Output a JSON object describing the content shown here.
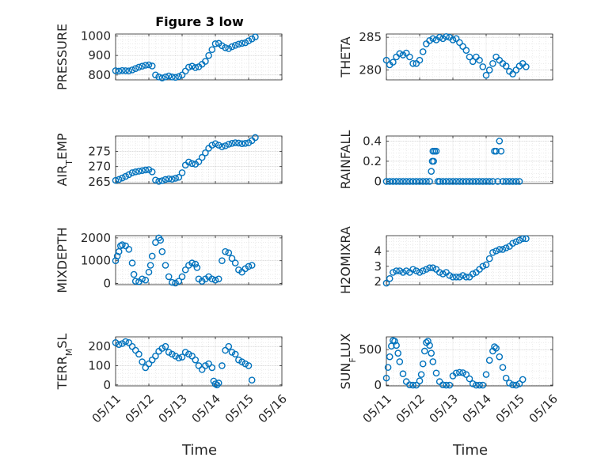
{
  "figure": {
    "title": "Figure 3 low",
    "xlabel": "Time",
    "x_ticks": [
      "05/11",
      "05/12",
      "05/13",
      "05/14",
      "05/15",
      "05/16"
    ],
    "marker_color": "#0072BD"
  },
  "chart_data": [
    {
      "type": "scatter",
      "id": "pressure",
      "ylabel": "PRESSURE",
      "ylim": [
        775,
        1010
      ],
      "yticks": [
        800,
        900,
        1000
      ],
      "x": [
        11.0,
        11.1,
        11.2,
        11.3,
        11.4,
        11.5,
        11.6,
        11.7,
        11.8,
        11.9,
        12.0,
        12.1,
        12.2,
        12.3,
        12.4,
        12.5,
        12.6,
        12.7,
        12.8,
        12.9,
        13.0,
        13.1,
        13.2,
        13.3,
        13.4,
        13.5,
        13.6,
        13.7,
        13.8,
        13.9,
        14.0,
        14.1,
        14.2,
        14.3,
        14.4,
        14.5,
        14.6,
        14.7,
        14.8,
        14.9,
        15.0,
        15.1,
        15.2
      ],
      "y": [
        822,
        820,
        823,
        822,
        821,
        826,
        833,
        840,
        845,
        850,
        852,
        846,
        800,
        790,
        785,
        790,
        795,
        790,
        788,
        792,
        800,
        820,
        840,
        845,
        838,
        842,
        855,
        870,
        900,
        930,
        960,
        962,
        950,
        940,
        935,
        945,
        952,
        958,
        962,
        965,
        975,
        985,
        995
      ]
    },
    {
      "type": "scatter",
      "id": "theta",
      "ylabel": "THETA",
      "ylim": [
        278.5,
        285.5
      ],
      "yticks": [
        280,
        285
      ],
      "x": [
        11.0,
        11.1,
        11.2,
        11.3,
        11.4,
        11.5,
        11.6,
        11.7,
        11.8,
        11.9,
        12.0,
        12.1,
        12.2,
        12.3,
        12.4,
        12.5,
        12.6,
        12.7,
        12.8,
        12.9,
        13.0,
        13.1,
        13.2,
        13.3,
        13.4,
        13.5,
        13.6,
        13.7,
        13.8,
        13.9,
        14.0,
        14.1,
        14.2,
        14.3,
        14.4,
        14.5,
        14.6,
        14.7,
        14.8,
        14.9,
        15.0,
        15.1,
        15.2
      ],
      "y": [
        281.5,
        280.8,
        281.2,
        282.0,
        282.5,
        282.3,
        282.6,
        282.0,
        281.0,
        281.0,
        281.5,
        282.8,
        284.0,
        284.5,
        284.8,
        284.6,
        285.0,
        284.8,
        285.1,
        285.0,
        284.6,
        284.8,
        284.2,
        283.6,
        283.0,
        282.0,
        281.3,
        282.0,
        281.5,
        280.5,
        279.2,
        280.0,
        281.0,
        282.0,
        281.5,
        281.0,
        280.6,
        279.8,
        279.4,
        280.0,
        280.6,
        281.0,
        280.5
      ]
    },
    {
      "type": "scatter",
      "id": "air-temp",
      "ylabel": "AIR_TEMP",
      "ylim": [
        264.5,
        280
      ],
      "yticks": [
        265,
        270,
        275
      ],
      "x": [
        11.0,
        11.1,
        11.2,
        11.3,
        11.4,
        11.5,
        11.6,
        11.7,
        11.8,
        11.9,
        12.0,
        12.1,
        12.2,
        12.3,
        12.4,
        12.5,
        12.6,
        12.7,
        12.8,
        12.9,
        13.0,
        13.1,
        13.2,
        13.3,
        13.4,
        13.5,
        13.6,
        13.7,
        13.8,
        13.9,
        14.0,
        14.1,
        14.2,
        14.3,
        14.4,
        14.5,
        14.6,
        14.7,
        14.8,
        14.9,
        15.0,
        15.1,
        15.2
      ],
      "y": [
        265.5,
        265.8,
        266.3,
        266.8,
        267.4,
        268.0,
        268.3,
        268.5,
        268.7,
        268.9,
        269.0,
        268.3,
        265.6,
        265.2,
        265.4,
        265.8,
        266.0,
        265.9,
        266.2,
        266.5,
        268.0,
        270.5,
        271.5,
        271.0,
        270.8,
        271.6,
        273.0,
        274.5,
        276.0,
        277.0,
        277.5,
        277.0,
        276.5,
        276.8,
        277.3,
        277.6,
        277.8,
        277.7,
        277.5,
        277.6,
        277.8,
        278.5,
        279.5
      ]
    },
    {
      "type": "scatter",
      "id": "rainfall",
      "ylabel": "RAINFALL",
      "ylim": [
        -0.02,
        0.45
      ],
      "yticks": [
        0,
        0.2,
        0.4
      ],
      "x": [
        11.0,
        11.1,
        11.2,
        11.3,
        11.4,
        11.5,
        11.6,
        11.7,
        11.8,
        11.9,
        12.0,
        12.1,
        12.2,
        12.3,
        12.35,
        12.38,
        12.4,
        12.42,
        12.45,
        12.5,
        12.55,
        12.6,
        12.7,
        12.8,
        12.9,
        13.0,
        13.1,
        13.2,
        13.3,
        13.4,
        13.5,
        13.6,
        13.7,
        13.8,
        13.9,
        14.0,
        14.1,
        14.2,
        14.25,
        14.3,
        14.35,
        14.4,
        14.45,
        14.5,
        14.6,
        14.7,
        14.8,
        14.9,
        15.0
      ],
      "y": [
        0,
        0,
        0,
        0,
        0,
        0,
        0,
        0,
        0,
        0,
        0,
        0,
        0,
        0,
        0.1,
        0.2,
        0.3,
        0.2,
        0.3,
        0.3,
        0,
        0,
        0,
        0,
        0,
        0,
        0,
        0,
        0,
        0,
        0,
        0,
        0,
        0,
        0,
        0,
        0,
        0,
        0.3,
        0.3,
        0,
        0.4,
        0.3,
        0,
        0,
        0,
        0,
        0,
        0
      ]
    },
    {
      "type": "scatter",
      "id": "mixdepth",
      "ylabel": "MIXDEPTH",
      "ylim": [
        -50,
        2100
      ],
      "yticks": [
        0,
        1000,
        2000
      ],
      "x": [
        11.0,
        11.05,
        11.1,
        11.15,
        11.2,
        11.3,
        11.4,
        11.5,
        11.55,
        11.6,
        11.7,
        11.8,
        11.9,
        12.0,
        12.05,
        12.1,
        12.2,
        12.3,
        12.35,
        12.4,
        12.5,
        12.6,
        12.7,
        12.8,
        12.9,
        13.0,
        13.1,
        13.2,
        13.3,
        13.4,
        13.45,
        13.5,
        13.6,
        13.7,
        13.8,
        13.9,
        14.0,
        14.1,
        14.2,
        14.3,
        14.4,
        14.5,
        14.6,
        14.7,
        14.8,
        14.9,
        15.0,
        15.1
      ],
      "y": [
        1000,
        1200,
        1400,
        1650,
        1700,
        1650,
        1500,
        900,
        400,
        100,
        80,
        200,
        150,
        500,
        800,
        1200,
        1800,
        2000,
        1900,
        1400,
        800,
        300,
        50,
        20,
        100,
        300,
        600,
        800,
        900,
        850,
        700,
        200,
        100,
        200,
        300,
        200,
        150,
        200,
        1000,
        1400,
        1350,
        1100,
        900,
        600,
        500,
        650,
        750,
        800
      ]
    },
    {
      "type": "scatter",
      "id": "h2omixra",
      "ylabel": "H2OMIXRA",
      "ylim": [
        1.8,
        5.0
      ],
      "yticks": [
        2,
        3,
        4
      ],
      "x": [
        11.0,
        11.1,
        11.2,
        11.3,
        11.4,
        11.5,
        11.6,
        11.7,
        11.8,
        11.9,
        12.0,
        12.1,
        12.2,
        12.3,
        12.4,
        12.5,
        12.6,
        12.7,
        12.8,
        12.9,
        13.0,
        13.1,
        13.2,
        13.3,
        13.4,
        13.5,
        13.6,
        13.7,
        13.8,
        13.9,
        14.0,
        14.1,
        14.2,
        14.3,
        14.4,
        14.5,
        14.6,
        14.7,
        14.8,
        14.9,
        15.0,
        15.1,
        15.2
      ],
      "y": [
        1.9,
        2.2,
        2.6,
        2.7,
        2.7,
        2.6,
        2.7,
        2.6,
        2.8,
        2.7,
        2.6,
        2.7,
        2.8,
        2.9,
        2.9,
        2.8,
        2.6,
        2.5,
        2.6,
        2.4,
        2.3,
        2.3,
        2.3,
        2.4,
        2.3,
        2.3,
        2.5,
        2.6,
        2.8,
        3.0,
        3.1,
        3.5,
        3.9,
        4.0,
        4.1,
        4.1,
        4.2,
        4.3,
        4.5,
        4.6,
        4.7,
        4.8,
        4.8
      ]
    },
    {
      "type": "scatter",
      "id": "terr-msl",
      "ylabel": "TERR_MSL",
      "ylim": [
        -5,
        250
      ],
      "yticks": [
        0,
        100,
        200
      ],
      "x": [
        11.0,
        11.1,
        11.2,
        11.3,
        11.4,
        11.5,
        11.6,
        11.7,
        11.8,
        11.9,
        12.0,
        12.1,
        12.2,
        12.3,
        12.4,
        12.5,
        12.6,
        12.7,
        12.8,
        12.9,
        13.0,
        13.1,
        13.2,
        13.3,
        13.4,
        13.5,
        13.6,
        13.7,
        13.8,
        13.9,
        13.95,
        14.0,
        14.05,
        14.1,
        14.2,
        14.3,
        14.4,
        14.5,
        14.6,
        14.7,
        14.8,
        14.9,
        15.0,
        15.1
      ],
      "y": [
        220,
        210,
        215,
        225,
        220,
        200,
        180,
        160,
        120,
        90,
        110,
        130,
        150,
        175,
        190,
        200,
        170,
        160,
        150,
        140,
        145,
        170,
        160,
        150,
        130,
        100,
        80,
        100,
        110,
        90,
        20,
        5,
        0,
        10,
        100,
        180,
        200,
        170,
        160,
        130,
        120,
        110,
        100,
        25
      ]
    },
    {
      "type": "scatter",
      "id": "sun-flux",
      "ylabel": "SUN_FLUX",
      "ylim": [
        -10,
        680
      ],
      "yticks": [
        0,
        500
      ],
      "x": [
        11.0,
        11.05,
        11.1,
        11.15,
        11.2,
        11.25,
        11.3,
        11.35,
        11.4,
        11.5,
        11.6,
        11.7,
        11.8,
        11.9,
        12.0,
        12.05,
        12.1,
        12.15,
        12.2,
        12.25,
        12.3,
        12.35,
        12.4,
        12.5,
        12.6,
        12.7,
        12.8,
        12.9,
        13.0,
        13.1,
        13.2,
        13.3,
        13.4,
        13.5,
        13.6,
        13.7,
        13.8,
        13.9,
        14.0,
        14.1,
        14.2,
        14.25,
        14.3,
        14.4,
        14.5,
        14.6,
        14.7,
        14.8,
        14.9,
        15.0,
        15.1
      ],
      "y": [
        100,
        250,
        400,
        550,
        630,
        620,
        560,
        450,
        330,
        160,
        50,
        5,
        0,
        0,
        60,
        150,
        300,
        480,
        600,
        620,
        560,
        450,
        330,
        170,
        50,
        5,
        0,
        0,
        130,
        170,
        180,
        175,
        150,
        90,
        20,
        0,
        0,
        0,
        150,
        350,
        480,
        540,
        520,
        400,
        250,
        100,
        30,
        5,
        0,
        20,
        80
      ]
    }
  ]
}
